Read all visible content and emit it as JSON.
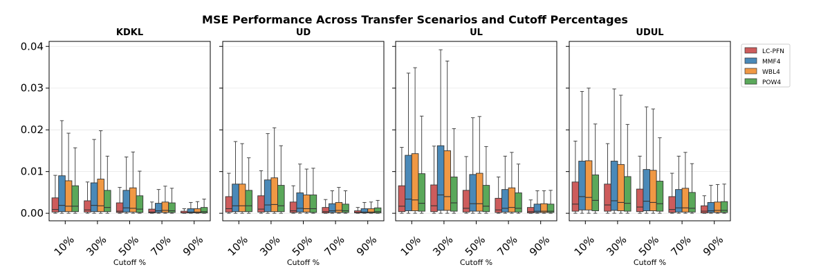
{
  "chart_data": {
    "type": "box",
    "title": "MSE Performance Across Transfer Scenarios and Cutoff Percentages",
    "categories": [
      "10%",
      "30%",
      "50%",
      "70%",
      "90%"
    ],
    "xlabel": "Cutoff %",
    "ylabel": "",
    "ylim": [
      -0.0018,
      0.0412
    ],
    "yticks": [
      "0.00",
      "0.01",
      "0.02",
      "0.03",
      "0.04"
    ],
    "ytick_values": [
      0,
      0.01,
      0.02,
      0.03,
      0.04
    ],
    "grid": "horizontal",
    "legend_position": "right",
    "series": [
      {
        "name": "LC-PFN",
        "color": "#cd5c5c"
      },
      {
        "name": "MMF4",
        "color": "#4a89b8"
      },
      {
        "name": "WBL4",
        "color": "#f09844"
      },
      {
        "name": "POW4",
        "color": "#5aa85a"
      }
    ],
    "panels": [
      {
        "title": "KDKL",
        "boxes": [
          [
            [
              0,
              0.0003,
              0.0009,
              0.0037,
              0.0091
            ],
            [
              0,
              0.0004,
              0.0019,
              0.009,
              0.0222
            ],
            [
              0,
              0.0004,
              0.0017,
              0.0078,
              0.0192
            ],
            [
              0,
              0.0004,
              0.0017,
              0.0066,
              0.0157
            ]
          ],
          [
            [
              0,
              0.0003,
              0.0008,
              0.003,
              0.0075
            ],
            [
              0,
              0.0004,
              0.0019,
              0.0073,
              0.0177
            ],
            [
              0,
              0.0004,
              0.0018,
              0.0082,
              0.0198
            ],
            [
              0,
              0.0004,
              0.0014,
              0.0055,
              0.0137
            ]
          ],
          [
            [
              0,
              0.0002,
              0.0005,
              0.0025,
              0.0062
            ],
            [
              0,
              0.0003,
              0.0013,
              0.0055,
              0.0135
            ],
            [
              0,
              0.0003,
              0.0012,
              0.0061,
              0.0147
            ],
            [
              0,
              0.0002,
              0.001,
              0.0042,
              0.0101
            ]
          ],
          [
            [
              0,
              0.0001,
              0.0003,
              0.001,
              0.0027
            ],
            [
              0,
              0.0002,
              0.0006,
              0.0024,
              0.0057
            ],
            [
              0,
              0.0002,
              0.0007,
              0.0027,
              0.0065
            ],
            [
              0,
              0.0002,
              0.0006,
              0.0025,
              0.006
            ]
          ],
          [
            [
              0,
              0.0001,
              0.0001,
              0.0005,
              0.0011
            ],
            [
              0,
              0.0001,
              0.0003,
              0.0011,
              0.0026
            ],
            [
              0,
              0.0001,
              0.0003,
              0.0011,
              0.0028
            ],
            [
              0,
              0.0001,
              0.0004,
              0.0014,
              0.0034
            ]
          ]
        ]
      },
      {
        "title": "UD",
        "boxes": [
          [
            [
              0,
              0.0003,
              0.0011,
              0.004,
              0.0096
            ],
            [
              0,
              0.0004,
              0.0018,
              0.007,
              0.0172
            ],
            [
              0,
              0.0004,
              0.0018,
              0.007,
              0.0167
            ],
            [
              0,
              0.0004,
              0.0018,
              0.0055,
              0.0133
            ]
          ],
          [
            [
              0,
              0.0003,
              0.001,
              0.0042,
              0.0102
            ],
            [
              0,
              0.0004,
              0.002,
              0.008,
              0.0191
            ],
            [
              0,
              0.0004,
              0.0021,
              0.0085,
              0.0205
            ],
            [
              0,
              0.0004,
              0.0018,
              0.0067,
              0.0162
            ]
          ],
          [
            [
              0,
              0.0002,
              0.0006,
              0.0027,
              0.0066
            ],
            [
              0,
              0.0003,
              0.0012,
              0.0049,
              0.0118
            ],
            [
              0,
              0.0003,
              0.0011,
              0.0044,
              0.0106
            ],
            [
              0,
              0.0002,
              0.0011,
              0.0044,
              0.0108
            ]
          ],
          [
            [
              0,
              0.0001,
              0.0004,
              0.0014,
              0.0033
            ],
            [
              0,
              0.0002,
              0.0006,
              0.0023,
              0.0054
            ],
            [
              0,
              0.0002,
              0.0007,
              0.0026,
              0.0062
            ],
            [
              0,
              0.0002,
              0.0006,
              0.0022,
              0.0054
            ]
          ],
          [
            [
              0,
              0.0001,
              0.0002,
              0.0006,
              0.0014
            ],
            [
              0,
              0.0001,
              0.0003,
              0.0011,
              0.0026
            ],
            [
              0,
              0.0001,
              0.0003,
              0.0011,
              0.0027
            ],
            [
              0,
              0.0001,
              0.0004,
              0.0013,
              0.0031
            ]
          ]
        ]
      },
      {
        "title": "UL",
        "boxes": [
          [
            [
              0,
              0.0004,
              0.0017,
              0.0066,
              0.0158
            ],
            [
              0,
              0.0006,
              0.0034,
              0.0139,
              0.0336
            ],
            [
              0,
              0.0006,
              0.0032,
              0.0143,
              0.0349
            ],
            [
              0,
              0.0005,
              0.0024,
              0.0095,
              0.0233
            ]
          ],
          [
            [
              0,
              0.0004,
              0.0018,
              0.0068,
              0.0161
            ],
            [
              0,
              0.0007,
              0.0044,
              0.0162,
              0.0392
            ],
            [
              0,
              0.0007,
              0.004,
              0.015,
              0.0365
            ],
            [
              0,
              0.0005,
              0.0025,
              0.0087,
              0.0203
            ]
          ],
          [
            [
              0,
              0.0003,
              0.0012,
              0.0055,
              0.0136
            ],
            [
              0,
              0.0005,
              0.0023,
              0.0093,
              0.0229
            ],
            [
              0,
              0.0005,
              0.0023,
              0.0096,
              0.0232
            ],
            [
              0,
              0.0004,
              0.0017,
              0.0067,
              0.016
            ]
          ],
          [
            [
              0,
              0.0002,
              0.0008,
              0.0036,
              0.0087
            ],
            [
              0,
              0.0003,
              0.0012,
              0.0057,
              0.0137
            ],
            [
              0,
              0.0003,
              0.0014,
              0.0061,
              0.0146
            ],
            [
              0,
              0.0003,
              0.0012,
              0.0049,
              0.0118
            ]
          ],
          [
            [
              0,
              0.0001,
              0.0004,
              0.0014,
              0.0032
            ],
            [
              0,
              0.0002,
              0.0005,
              0.0022,
              0.0054
            ],
            [
              0,
              0.0002,
              0.0005,
              0.0023,
              0.0054
            ],
            [
              0,
              0.0002,
              0.0005,
              0.0022,
              0.0055
            ]
          ]
        ]
      },
      {
        "title": "UDUL",
        "boxes": [
          [
            [
              0,
              0.0005,
              0.0022,
              0.0075,
              0.0173
            ],
            [
              0,
              0.0008,
              0.004,
              0.0125,
              0.0292
            ],
            [
              0,
              0.0008,
              0.0038,
              0.0126,
              0.03
            ],
            [
              0,
              0.0006,
              0.0031,
              0.0092,
              0.0214
            ]
          ],
          [
            [
              0,
              0.0005,
              0.002,
              0.007,
              0.0167
            ],
            [
              0,
              0.0007,
              0.003,
              0.0125,
              0.0298
            ],
            [
              0,
              0.0006,
              0.0026,
              0.0117,
              0.0283
            ],
            [
              0,
              0.0005,
              0.0024,
              0.0088,
              0.0213
            ]
          ],
          [
            [
              0,
              0.0004,
              0.0015,
              0.0058,
              0.0137
            ],
            [
              0,
              0.0006,
              0.0029,
              0.0105,
              0.0255
            ],
            [
              0,
              0.0006,
              0.0026,
              0.0103,
              0.025
            ],
            [
              0,
              0.0005,
              0.0023,
              0.0077,
              0.0181
            ]
          ],
          [
            [
              0,
              0.0002,
              0.0009,
              0.004,
              0.0096
            ],
            [
              0,
              0.0003,
              0.0013,
              0.0057,
              0.0137
            ],
            [
              0,
              0.0003,
              0.0013,
              0.006,
              0.0146
            ],
            [
              0,
              0.0003,
              0.0012,
              0.005,
              0.0119
            ]
          ],
          [
            [
              0,
              0.0001,
              0.0005,
              0.0018,
              0.0042
            ],
            [
              0,
              0.0002,
              0.0006,
              0.0026,
              0.0067
            ],
            [
              0,
              0.0002,
              0.0007,
              0.0027,
              0.0069
            ],
            [
              0,
              0.0002,
              0.0007,
              0.0028,
              0.007
            ]
          ]
        ]
      }
    ]
  }
}
